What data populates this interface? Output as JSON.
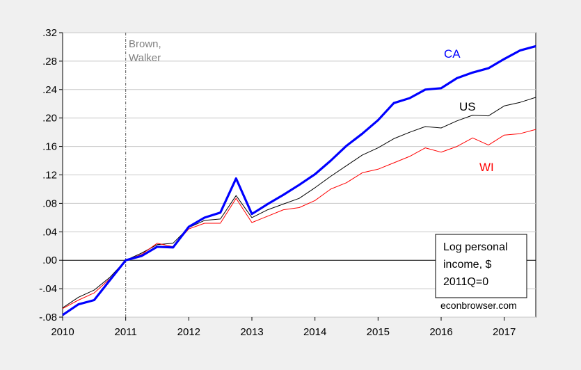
{
  "chart_data": {
    "type": "line",
    "title": "",
    "xlabel": "",
    "ylabel": "",
    "xlim": [
      2010.0,
      2017.5
    ],
    "ylim": [
      -0.08,
      0.32
    ],
    "grid": true,
    "x_ticks": [
      2010,
      2011,
      2012,
      2013,
      2014,
      2015,
      2016,
      2017
    ],
    "x_tick_labels": [
      "2010",
      "2011",
      "2012",
      "2013",
      "2014",
      "2015",
      "2016",
      "2017"
    ],
    "y_ticks": [
      -0.08,
      -0.04,
      0.0,
      0.04,
      0.08,
      0.12,
      0.16,
      0.2,
      0.24,
      0.28,
      0.32
    ],
    "y_tick_labels": [
      "-.08",
      "-.04",
      ".00",
      ".04",
      ".08",
      ".12",
      ".16",
      ".20",
      ".24",
      ".28",
      ".32"
    ],
    "x": [
      2010.0,
      2010.25,
      2010.5,
      2010.75,
      2011.0,
      2011.25,
      2011.5,
      2011.75,
      2012.0,
      2012.25,
      2012.5,
      2012.75,
      2013.0,
      2013.25,
      2013.5,
      2013.75,
      2014.0,
      2014.25,
      2014.5,
      2014.75,
      2015.0,
      2015.25,
      2015.5,
      2015.75,
      2016.0,
      2016.25,
      2016.5,
      2016.75,
      2017.0,
      2017.25,
      2017.5
    ],
    "series": [
      {
        "name": "CA",
        "color": "#0000ff",
        "values": [
          -0.077,
          -0.062,
          -0.056,
          -0.028,
          0.0,
          0.006,
          0.019,
          0.018,
          0.047,
          0.06,
          0.067,
          0.115,
          0.065,
          0.079,
          0.092,
          0.106,
          0.121,
          0.14,
          0.161,
          0.178,
          0.197,
          0.221,
          0.228,
          0.24,
          0.242,
          0.256,
          0.264,
          0.27,
          0.283,
          0.295,
          0.301
        ]
      },
      {
        "name": "US",
        "color": "#000000",
        "values": [
          -0.067,
          -0.052,
          -0.042,
          -0.024,
          0.0,
          0.01,
          0.022,
          0.024,
          0.046,
          0.056,
          0.058,
          0.091,
          0.06,
          0.071,
          0.079,
          0.087,
          0.102,
          0.118,
          0.133,
          0.148,
          0.158,
          0.171,
          0.18,
          0.188,
          0.186,
          0.196,
          0.204,
          0.203,
          0.217,
          0.222,
          0.229
        ]
      },
      {
        "name": "WI",
        "color": "#ff0000",
        "values": [
          -0.068,
          -0.056,
          -0.046,
          -0.026,
          0.0,
          0.008,
          0.024,
          0.019,
          0.044,
          0.052,
          0.052,
          0.087,
          0.053,
          0.062,
          0.071,
          0.074,
          0.084,
          0.1,
          0.109,
          0.123,
          0.128,
          0.137,
          0.146,
          0.158,
          0.152,
          0.16,
          0.172,
          0.162,
          0.176,
          0.178,
          0.184
        ]
      }
    ],
    "annotations": {
      "event_x": 2011.0,
      "event_label_line1": "Brown,",
      "event_label_line2": "Walker",
      "note_line1": "Log personal",
      "note_line2": "income, $",
      "note_line3": "2011Q=0",
      "credit": "econbrowser.com"
    },
    "colors": {
      "plot_background": "#ffffff",
      "figure_background": "#f0f0f0",
      "grid": "#c8c8c8",
      "event_label": "#808080"
    }
  }
}
